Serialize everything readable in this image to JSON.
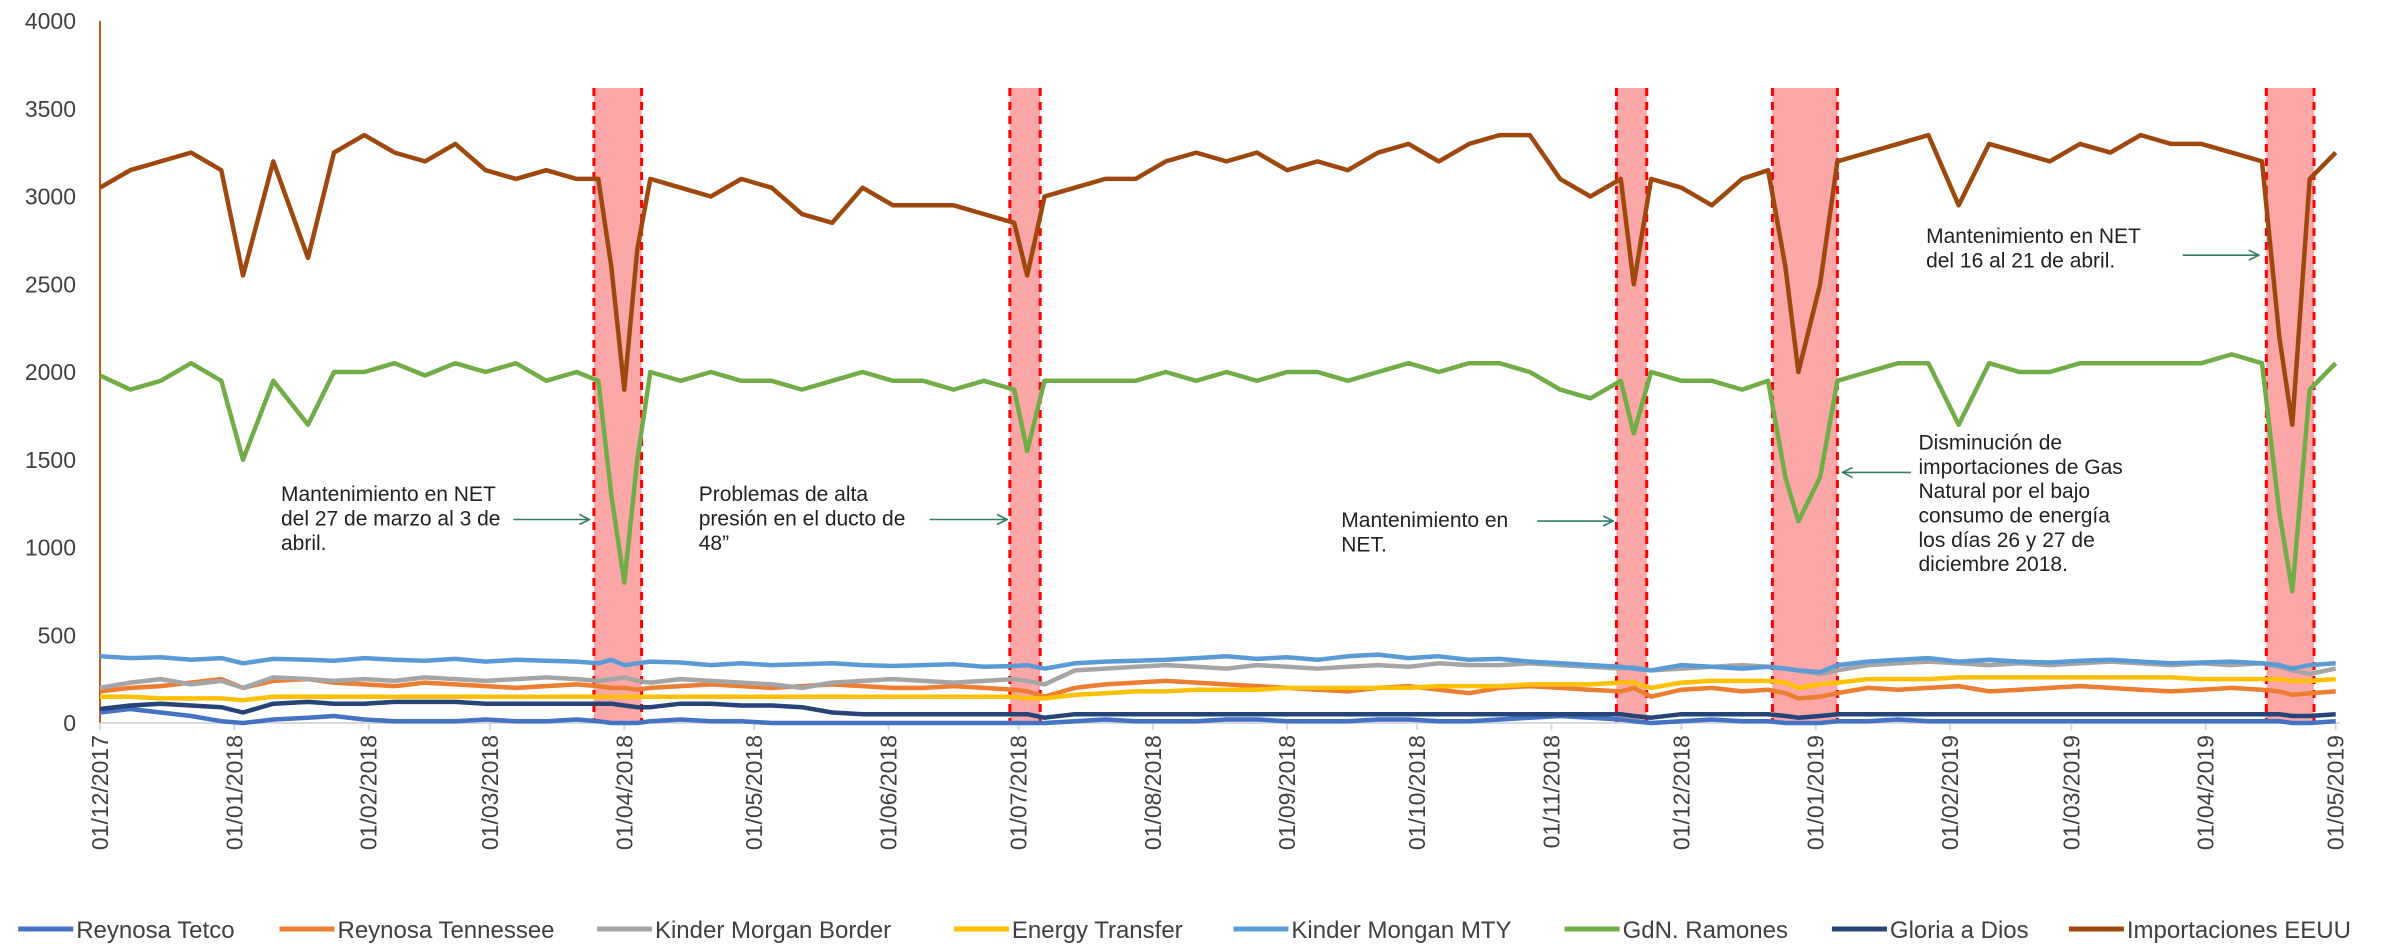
{
  "chart_data": {
    "type": "line",
    "x": [
      "2017-12-01",
      "2017-12-08",
      "2017-12-15",
      "2017-12-22",
      "2017-12-29",
      "2018-01-03",
      "2018-01-10",
      "2018-01-18",
      "2018-01-24",
      "2018-01-31",
      "2018-02-07",
      "2018-02-14",
      "2018-02-21",
      "2018-02-28",
      "2018-03-07",
      "2018-03-14",
      "2018-03-21",
      "2018-03-26",
      "2018-03-29",
      "2018-04-01",
      "2018-04-04",
      "2018-04-07",
      "2018-04-14",
      "2018-04-21",
      "2018-04-28",
      "2018-05-05",
      "2018-05-12",
      "2018-05-19",
      "2018-05-26",
      "2018-06-02",
      "2018-06-09",
      "2018-06-16",
      "2018-06-23",
      "2018-06-30",
      "2018-07-03",
      "2018-07-07",
      "2018-07-14",
      "2018-07-21",
      "2018-07-28",
      "2018-08-04",
      "2018-08-11",
      "2018-08-18",
      "2018-08-25",
      "2018-09-01",
      "2018-09-08",
      "2018-09-15",
      "2018-09-22",
      "2018-09-29",
      "2018-10-06",
      "2018-10-13",
      "2018-10-20",
      "2018-10-27",
      "2018-11-03",
      "2018-11-10",
      "2018-11-17",
      "2018-11-20",
      "2018-11-24",
      "2018-12-01",
      "2018-12-08",
      "2018-12-15",
      "2018-12-21",
      "2018-12-25",
      "2018-12-28",
      "2019-01-02",
      "2019-01-06",
      "2019-01-13",
      "2019-01-20",
      "2019-01-27",
      "2019-02-03",
      "2019-02-10",
      "2019-02-17",
      "2019-02-24",
      "2019-03-03",
      "2019-03-10",
      "2019-03-17",
      "2019-03-24",
      "2019-03-31",
      "2019-04-07",
      "2019-04-14",
      "2019-04-18",
      "2019-04-21",
      "2019-04-25",
      "2019-05-01"
    ],
    "series": [
      {
        "name": "Reynosa Tetco",
        "color": "#4472c4",
        "values": [
          60,
          80,
          60,
          40,
          10,
          0,
          20,
          30,
          40,
          20,
          10,
          10,
          10,
          20,
          10,
          10,
          20,
          10,
          0,
          0,
          0,
          10,
          20,
          10,
          10,
          0,
          0,
          0,
          0,
          0,
          0,
          0,
          0,
          0,
          0,
          0,
          10,
          20,
          10,
          10,
          10,
          20,
          20,
          10,
          10,
          10,
          20,
          20,
          10,
          10,
          20,
          30,
          40,
          30,
          20,
          10,
          0,
          10,
          20,
          10,
          10,
          0,
          0,
          0,
          10,
          10,
          20,
          10,
          10,
          10,
          10,
          10,
          10,
          10,
          10,
          10,
          10,
          10,
          10,
          10,
          0,
          0,
          10
        ]
      },
      {
        "name": "Reynosa Tennessee",
        "color": "#ed7d31",
        "values": [
          180,
          200,
          210,
          230,
          250,
          200,
          240,
          250,
          230,
          220,
          210,
          230,
          220,
          210,
          200,
          210,
          220,
          210,
          200,
          200,
          190,
          200,
          210,
          220,
          210,
          200,
          210,
          220,
          210,
          200,
          200,
          210,
          200,
          190,
          180,
          150,
          200,
          220,
          230,
          240,
          230,
          220,
          210,
          200,
          190,
          180,
          200,
          210,
          190,
          170,
          200,
          210,
          200,
          190,
          180,
          200,
          150,
          190,
          200,
          180,
          190,
          170,
          140,
          150,
          170,
          200,
          190,
          200,
          210,
          180,
          190,
          200,
          210,
          200,
          190,
          180,
          190,
          200,
          190,
          180,
          160,
          170,
          180
        ]
      },
      {
        "name": "Kinder Morgan Border",
        "color": "#a5a5a5",
        "values": [
          200,
          230,
          250,
          220,
          240,
          200,
          260,
          250,
          240,
          250,
          240,
          260,
          250,
          240,
          250,
          260,
          250,
          240,
          250,
          260,
          240,
          230,
          250,
          240,
          230,
          220,
          200,
          230,
          240,
          250,
          240,
          230,
          240,
          250,
          240,
          220,
          300,
          310,
          320,
          330,
          320,
          310,
          330,
          320,
          310,
          320,
          330,
          320,
          340,
          330,
          330,
          340,
          330,
          320,
          310,
          320,
          300,
          310,
          320,
          330,
          320,
          310,
          300,
          280,
          300,
          330,
          340,
          350,
          340,
          330,
          340,
          330,
          340,
          350,
          340,
          330,
          340,
          330,
          340,
          320,
          300,
          280,
          310
        ]
      },
      {
        "name": "Energy Transfer",
        "color": "#ffc000",
        "values": [
          150,
          150,
          140,
          140,
          140,
          130,
          150,
          150,
          150,
          150,
          150,
          150,
          150,
          150,
          150,
          150,
          150,
          150,
          150,
          150,
          150,
          150,
          150,
          150,
          150,
          150,
          150,
          150,
          150,
          150,
          150,
          150,
          150,
          150,
          140,
          140,
          160,
          170,
          180,
          180,
          190,
          190,
          190,
          200,
          200,
          200,
          200,
          200,
          210,
          210,
          210,
          220,
          220,
          220,
          230,
          230,
          200,
          230,
          240,
          240,
          240,
          230,
          200,
          220,
          230,
          250,
          250,
          250,
          260,
          260,
          260,
          260,
          260,
          260,
          260,
          260,
          250,
          250,
          250,
          250,
          240,
          240,
          250
        ]
      },
      {
        "name": "Kinder Mongan MTY",
        "color": "#5b9bd5",
        "values": [
          380,
          370,
          375,
          360,
          370,
          340,
          365,
          360,
          355,
          370,
          360,
          355,
          365,
          350,
          360,
          355,
          350,
          340,
          360,
          330,
          340,
          350,
          345,
          330,
          340,
          330,
          335,
          340,
          330,
          325,
          330,
          335,
          320,
          325,
          330,
          310,
          340,
          350,
          355,
          360,
          370,
          380,
          365,
          375,
          360,
          380,
          390,
          370,
          380,
          360,
          365,
          350,
          340,
          330,
          320,
          310,
          300,
          330,
          320,
          310,
          320,
          310,
          300,
          290,
          330,
          350,
          360,
          370,
          350,
          360,
          350,
          345,
          355,
          360,
          350,
          340,
          345,
          350,
          340,
          330,
          310,
          330,
          340
        ]
      },
      {
        "name": "GdN. Ramones",
        "color": "#70ad47",
        "values": [
          1980,
          1900,
          1950,
          2050,
          1950,
          1500,
          1950,
          1700,
          2000,
          2000,
          2050,
          1980,
          2050,
          2000,
          2050,
          1950,
          2000,
          1950,
          1300,
          800,
          1500,
          2000,
          1950,
          2000,
          1950,
          1950,
          1900,
          1950,
          2000,
          1950,
          1950,
          1900,
          1950,
          1900,
          1550,
          1950,
          1950,
          1950,
          1950,
          2000,
          1950,
          2000,
          1950,
          2000,
          2000,
          1950,
          2000,
          2050,
          2000,
          2050,
          2050,
          2000,
          1900,
          1850,
          1950,
          1650,
          2000,
          1950,
          1950,
          1900,
          1950,
          1400,
          1150,
          1400,
          1950,
          2000,
          2050,
          2050,
          1700,
          2050,
          2000,
          2000,
          2050,
          2050,
          2050,
          2050,
          2050,
          2100,
          2050,
          1200,
          750,
          1900,
          2050
        ]
      },
      {
        "name": "Gloria a Dios",
        "color": "#264478",
        "values": [
          80,
          100,
          110,
          100,
          90,
          60,
          110,
          120,
          110,
          110,
          120,
          120,
          120,
          110,
          110,
          110,
          110,
          110,
          110,
          100,
          90,
          90,
          110,
          110,
          100,
          100,
          90,
          60,
          50,
          50,
          50,
          50,
          50,
          50,
          50,
          30,
          50,
          50,
          50,
          50,
          50,
          50,
          50,
          50,
          50,
          50,
          50,
          50,
          50,
          50,
          50,
          50,
          50,
          50,
          50,
          40,
          30,
          50,
          50,
          50,
          50,
          40,
          30,
          40,
          50,
          50,
          50,
          50,
          50,
          50,
          50,
          50,
          50,
          50,
          50,
          50,
          50,
          50,
          50,
          50,
          40,
          40,
          50
        ]
      },
      {
        "name": "Importaciones EEUU",
        "color": "#9e480e",
        "values": [
          3050,
          3150,
          3200,
          3250,
          3150,
          2550,
          3200,
          2650,
          3250,
          3350,
          3250,
          3200,
          3300,
          3150,
          3100,
          3150,
          3100,
          3100,
          2600,
          1900,
          2700,
          3100,
          3050,
          3000,
          3100,
          3050,
          2900,
          2850,
          3050,
          2950,
          2950,
          2950,
          2900,
          2850,
          2550,
          3000,
          3050,
          3100,
          3100,
          3200,
          3250,
          3200,
          3250,
          3150,
          3200,
          3150,
          3250,
          3300,
          3200,
          3300,
          3350,
          3350,
          3100,
          3000,
          3100,
          2500,
          3100,
          3050,
          2950,
          3100,
          3150,
          2600,
          2000,
          2500,
          3200,
          3250,
          3300,
          3350,
          2950,
          3300,
          3250,
          3200,
          3300,
          3250,
          3350,
          3300,
          3300,
          3250,
          3200,
          2200,
          1700,
          3100,
          3250
        ]
      }
    ],
    "xlim": [
      "2017-12-01",
      "2019-05-02"
    ],
    "xticks": [
      {
        "value": "2017-12-01",
        "label": "01/12/2017"
      },
      {
        "value": "2018-01-01",
        "label": "01/01/2018"
      },
      {
        "value": "2018-02-01",
        "label": "01/02/2018"
      },
      {
        "value": "2018-03-01",
        "label": "01/03/2018"
      },
      {
        "value": "2018-04-01",
        "label": "01/04/2018"
      },
      {
        "value": "2018-05-01",
        "label": "01/05/2018"
      },
      {
        "value": "2018-06-01",
        "label": "01/06/2018"
      },
      {
        "value": "2018-07-01",
        "label": "01/07/2018"
      },
      {
        "value": "2018-08-01",
        "label": "01/08/2018"
      },
      {
        "value": "2018-09-01",
        "label": "01/09/2018"
      },
      {
        "value": "2018-10-01",
        "label": "01/10/2018"
      },
      {
        "value": "2018-11-01",
        "label": "01/11/2018"
      },
      {
        "value": "2018-12-01",
        "label": "01/12/2018"
      },
      {
        "value": "2019-01-01",
        "label": "01/01/2019"
      },
      {
        "value": "2019-02-01",
        "label": "01/02/2019"
      },
      {
        "value": "2019-03-01",
        "label": "01/03/2019"
      },
      {
        "value": "2019-04-01",
        "label": "01/04/2019"
      },
      {
        "value": "2019-05-01",
        "label": "01/05/2019"
      }
    ],
    "ylim": [
      0,
      4000
    ],
    "yticks": [
      0,
      500,
      1000,
      1500,
      2000,
      2500,
      3000,
      3500,
      4000
    ],
    "grid": false,
    "legend": "bottom",
    "highlight_ranges": [
      {
        "start": "2018-03-25",
        "end": "2018-04-05"
      },
      {
        "start": "2018-06-29",
        "end": "2018-07-06"
      },
      {
        "start": "2018-11-16",
        "end": "2018-11-23"
      },
      {
        "start": "2018-12-22",
        "end": "2019-01-06"
      },
      {
        "start": "2019-04-15",
        "end": "2019-04-26"
      }
    ],
    "annotations": [
      {
        "lines": [
          "Mantenimiento en NET",
          "del 27 de marzo al 3 de",
          "abril."
        ]
      },
      {
        "lines": [
          "Problemas de alta",
          "presión en el ducto de",
          "48”"
        ]
      },
      {
        "lines": [
          "Mantenimiento en",
          "NET."
        ]
      },
      {
        "lines": [
          "Disminución de",
          "importaciones de Gas",
          "Natural por el bajo",
          "consumo de energía",
          "los días 26 y 27 de",
          "diciembre 2018."
        ]
      },
      {
        "lines": [
          "Mantenimiento en NET",
          "del 16 al 21 de abril."
        ]
      }
    ]
  }
}
